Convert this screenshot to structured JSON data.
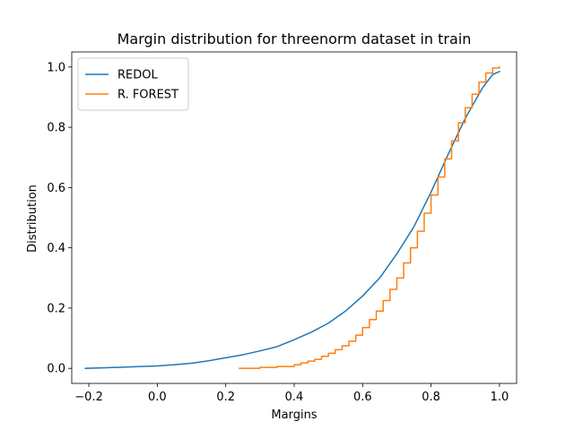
{
  "chart_data": {
    "type": "line",
    "title": "Margin distribution for threenorm dataset in train",
    "xlabel": "Margins",
    "ylabel": "Distribution",
    "xlim": [
      -0.25,
      1.05
    ],
    "ylim": [
      -0.05,
      1.05
    ],
    "xticks": [
      -0.2,
      0.0,
      0.2,
      0.4,
      0.6,
      0.8,
      1.0
    ],
    "xtick_labels": [
      "−0.2",
      "0.0",
      "0.2",
      "0.4",
      "0.6",
      "0.8",
      "1.0"
    ],
    "yticks": [
      0.0,
      0.2,
      0.4,
      0.6,
      0.8,
      1.0
    ],
    "ytick_labels": [
      "0.0",
      "0.2",
      "0.4",
      "0.6",
      "0.8",
      "1.0"
    ],
    "grid": false,
    "legend_position": "top-left",
    "series": [
      {
        "name": "REDOL",
        "color": "#1f77b4",
        "step": false,
        "x": [
          -0.21,
          -0.15,
          -0.1,
          -0.05,
          0.0,
          0.05,
          0.1,
          0.15,
          0.2,
          0.25,
          0.3,
          0.35,
          0.4,
          0.45,
          0.5,
          0.55,
          0.6,
          0.65,
          0.7,
          0.75,
          0.8,
          0.85,
          0.9,
          0.95,
          0.98,
          1.0
        ],
        "y": [
          0.0,
          0.002,
          0.004,
          0.006,
          0.008,
          0.012,
          0.017,
          0.025,
          0.035,
          0.045,
          0.058,
          0.072,
          0.095,
          0.12,
          0.15,
          0.19,
          0.24,
          0.3,
          0.38,
          0.47,
          0.585,
          0.71,
          0.83,
          0.93,
          0.975,
          0.985
        ]
      },
      {
        "name": "R. FOREST",
        "color": "#ff7f0e",
        "step": true,
        "x": [
          0.24,
          0.3,
          0.35,
          0.4,
          0.42,
          0.44,
          0.46,
          0.48,
          0.5,
          0.52,
          0.54,
          0.56,
          0.58,
          0.6,
          0.62,
          0.64,
          0.66,
          0.68,
          0.7,
          0.72,
          0.74,
          0.76,
          0.78,
          0.8,
          0.82,
          0.84,
          0.86,
          0.88,
          0.9,
          0.92,
          0.94,
          0.96,
          0.98,
          1.0
        ],
        "y": [
          0.0,
          0.003,
          0.006,
          0.012,
          0.018,
          0.024,
          0.03,
          0.04,
          0.05,
          0.062,
          0.075,
          0.09,
          0.11,
          0.135,
          0.162,
          0.19,
          0.225,
          0.262,
          0.3,
          0.35,
          0.4,
          0.455,
          0.515,
          0.575,
          0.635,
          0.695,
          0.755,
          0.815,
          0.865,
          0.91,
          0.95,
          0.98,
          0.997,
          1.0
        ]
      }
    ]
  }
}
